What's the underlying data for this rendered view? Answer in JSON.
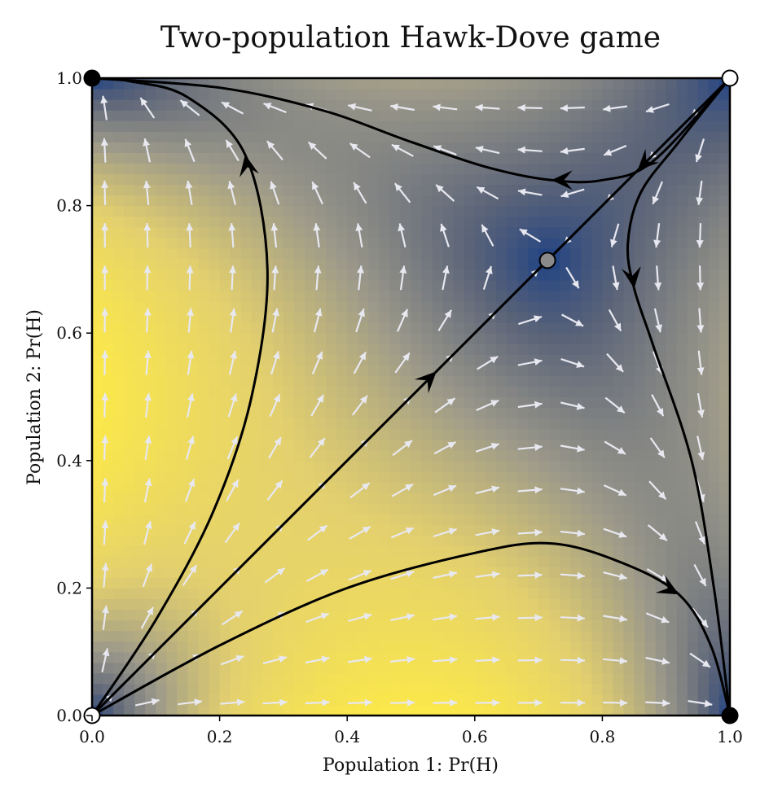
{
  "chart_data": {
    "type": "vector-field",
    "title": "Two-population Hawk-Dove game",
    "xlabel": "Population 1: Pr(H)",
    "ylabel": "Population 2: Pr(H)",
    "xlim": [
      0.0,
      1.0
    ],
    "ylim": [
      0.0,
      1.0
    ],
    "xticks": [
      "0.0",
      "0.2",
      "0.4",
      "0.6",
      "0.8",
      "1.0"
    ],
    "yticks": [
      "0.0",
      "0.2",
      "0.4",
      "0.6",
      "0.8",
      "1.0"
    ],
    "grid": false,
    "interior_equilibrium": [
      0.714,
      0.714
    ],
    "equilibria": [
      {
        "x": 0.0,
        "y": 0.0,
        "kind": "unstable"
      },
      {
        "x": 1.0,
        "y": 1.0,
        "kind": "unstable"
      },
      {
        "x": 0.0,
        "y": 1.0,
        "kind": "stable"
      },
      {
        "x": 1.0,
        "y": 0.0,
        "kind": "stable"
      },
      {
        "x": 0.714,
        "y": 0.714,
        "kind": "saddle"
      }
    ],
    "trajectories": [
      {
        "points": [
          [
            0.0,
            0.0
          ],
          [
            0.1,
            0.15
          ],
          [
            0.19,
            0.32
          ],
          [
            0.25,
            0.5
          ],
          [
            0.275,
            0.7
          ],
          [
            0.24,
            0.88
          ],
          [
            0.15,
            0.97
          ],
          [
            0.06,
            0.995
          ],
          [
            0.0,
            1.0
          ]
        ],
        "arrow_at": 5
      },
      {
        "points": [
          [
            1.0,
            1.0
          ],
          [
            0.88,
            0.87
          ],
          [
            0.8,
            0.84
          ],
          [
            0.72,
            0.84
          ],
          [
            0.62,
            0.86
          ],
          [
            0.5,
            0.9
          ],
          [
            0.36,
            0.95
          ],
          [
            0.2,
            0.985
          ],
          [
            0.0,
            1.0
          ]
        ],
        "arrow_at": 3
      },
      {
        "points": [
          [
            0.0,
            0.0
          ],
          [
            0.2,
            0.11
          ],
          [
            0.4,
            0.2
          ],
          [
            0.6,
            0.255
          ],
          [
            0.72,
            0.27
          ],
          [
            0.83,
            0.24
          ],
          [
            0.92,
            0.19
          ],
          [
            0.97,
            0.11
          ],
          [
            1.0,
            0.0
          ]
        ],
        "arrow_at": 6
      },
      {
        "points": [
          [
            1.0,
            1.0
          ],
          [
            0.92,
            0.9
          ],
          [
            0.86,
            0.82
          ],
          [
            0.84,
            0.74
          ],
          [
            0.85,
            0.67
          ],
          [
            0.88,
            0.58
          ],
          [
            0.94,
            0.4
          ],
          [
            0.975,
            0.2
          ],
          [
            1.0,
            0.0
          ]
        ],
        "arrow_at": 4
      },
      {
        "points": [
          [
            0.0,
            0.0
          ],
          [
            0.54,
            0.54
          ],
          [
            0.714,
            0.714
          ]
        ],
        "arrow_at": 1
      },
      {
        "points": [
          [
            1.0,
            1.0
          ],
          [
            0.855,
            0.855
          ],
          [
            0.714,
            0.714
          ]
        ],
        "arrow_at": 1
      }
    ],
    "colormap": [
      "#173d85",
      "#5a6378",
      "#9c998a",
      "#e3d06e",
      "#fbe84a"
    ],
    "field_color": "#e8e8f0"
  }
}
